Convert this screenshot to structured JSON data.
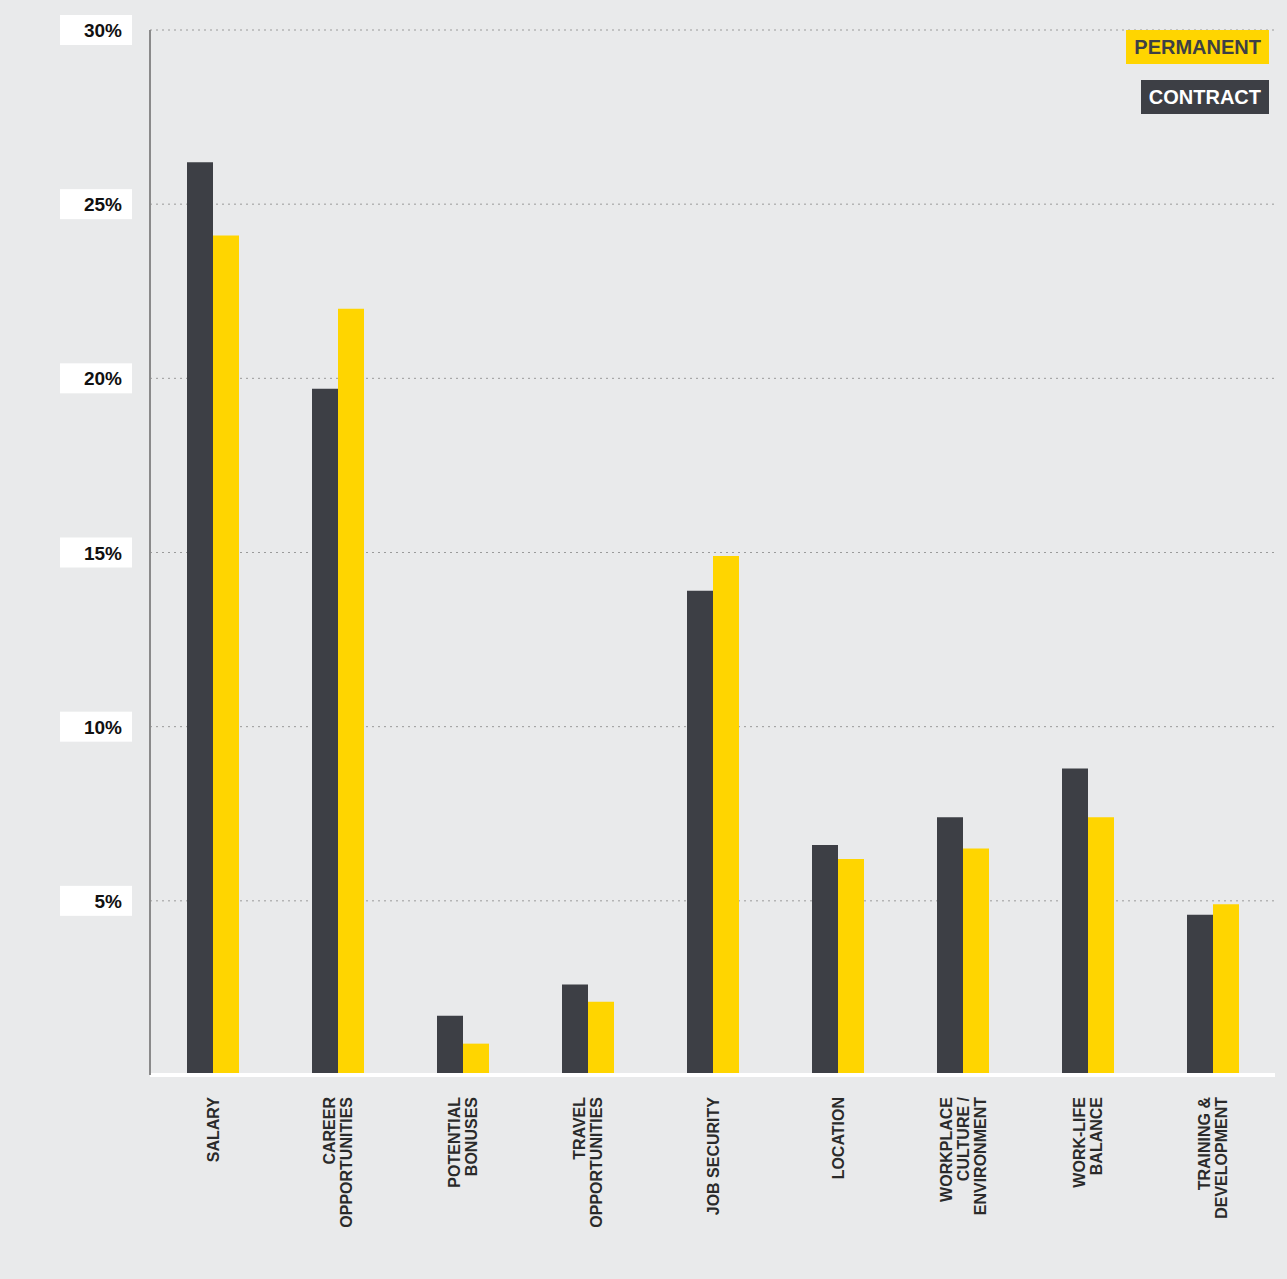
{
  "chart_data": {
    "type": "bar",
    "categories": [
      "SALARY",
      "CAREER OPPORTUNITIES",
      "POTENTIAL BONUSES",
      "TRAVEL OPPORTUNITIES",
      "JOB SECURITY",
      "LOCATION",
      "WORKPLACE CULTURE / ENVIRONMENT",
      "WORK-LIFE BALANCE",
      "TRAINING & DEVELOPMENT"
    ],
    "series": [
      {
        "name": "CONTRACT",
        "color": "#3d3f45",
        "values": [
          26.2,
          19.7,
          1.7,
          2.6,
          13.9,
          6.6,
          7.4,
          8.8,
          4.6
        ]
      },
      {
        "name": "PERMANENT",
        "color": "#ffd500",
        "values": [
          24.1,
          22.0,
          0.9,
          2.1,
          14.9,
          6.2,
          6.5,
          7.4,
          4.9
        ]
      }
    ],
    "ylim": [
      0,
      30
    ],
    "yticks": [
      {
        "value": 5,
        "label": "5%"
      },
      {
        "value": 10,
        "label": "10%"
      },
      {
        "value": 15,
        "label": "15%"
      },
      {
        "value": 20,
        "label": "20%"
      },
      {
        "value": 25,
        "label": "25%"
      },
      {
        "value": 30,
        "label": "30%"
      }
    ],
    "grid": true,
    "legend": "top-right"
  }
}
